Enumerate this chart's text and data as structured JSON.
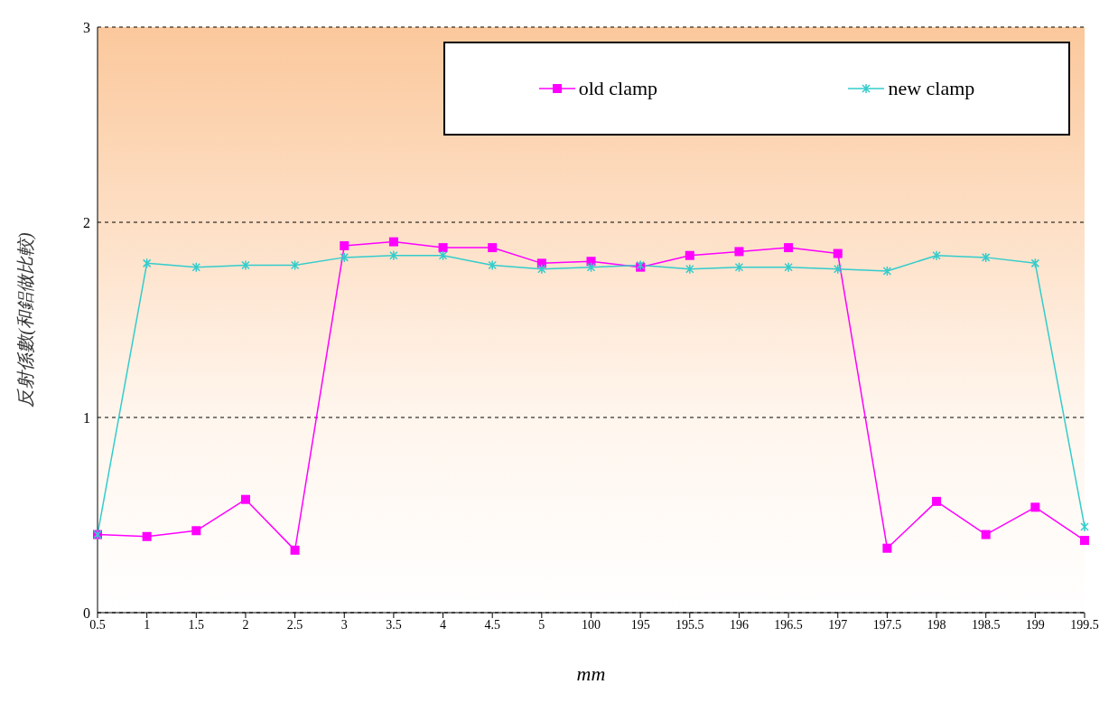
{
  "chart_data": {
    "type": "line",
    "xlabel": "mm",
    "ylabel": "反射係數(和鋁做比較)",
    "categories": [
      "0.5",
      "1",
      "1.5",
      "2",
      "2.5",
      "3",
      "3.5",
      "4",
      "4.5",
      "5",
      "100",
      "195",
      "195.5",
      "196",
      "196.5",
      "197",
      "197.5",
      "198",
      "198.5",
      "199",
      "199.5"
    ],
    "series": [
      {
        "name": "old clamp",
        "color": "#ff00ff",
        "marker": "square",
        "values": [
          0.4,
          0.39,
          0.42,
          0.58,
          0.32,
          1.88,
          1.9,
          1.87,
          1.87,
          1.79,
          1.8,
          1.77,
          1.83,
          1.85,
          1.87,
          1.84,
          0.33,
          0.57,
          0.4,
          0.54,
          0.37
        ]
      },
      {
        "name": "new clamp",
        "color": "#33cccc",
        "marker": "cross",
        "values": [
          0.4,
          1.79,
          1.77,
          1.78,
          1.78,
          1.82,
          1.83,
          1.83,
          1.78,
          1.76,
          1.77,
          1.78,
          1.76,
          1.77,
          1.77,
          1.76,
          1.75,
          1.83,
          1.82,
          1.79,
          0.44
        ]
      }
    ],
    "ylim": [
      0,
      3
    ],
    "yticks": [
      0,
      1,
      2,
      3
    ],
    "grid": "y",
    "legend": "top right"
  }
}
